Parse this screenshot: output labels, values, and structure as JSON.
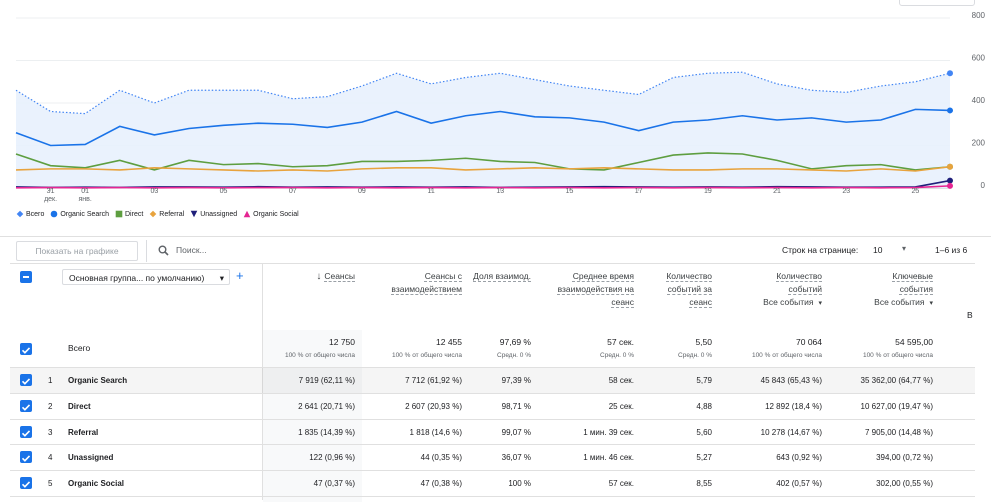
{
  "chart_data": {
    "type": "line",
    "categories": [
      null,
      "31 дек.",
      "01 янв.",
      null,
      "03",
      null,
      "05",
      null,
      "07",
      null,
      "09",
      null,
      "11",
      null,
      "13",
      null,
      "15",
      null,
      "17",
      null,
      "19",
      null,
      "21",
      null,
      "23",
      null,
      "25",
      null
    ],
    "series": [
      {
        "name": "Всего",
        "color": "#4285f4",
        "line_style": "dotted",
        "area": true,
        "marker": "diamond",
        "values": [
          460,
          360,
          350,
          460,
          400,
          460,
          460,
          460,
          420,
          430,
          480,
          540,
          490,
          520,
          540,
          510,
          480,
          460,
          440,
          520,
          540,
          545,
          490,
          460,
          450,
          480,
          500,
          540
        ]
      },
      {
        "name": "Organic Search",
        "color": "#1a73e8",
        "marker": "circle",
        "values": [
          260,
          200,
          205,
          290,
          250,
          280,
          295,
          305,
          300,
          285,
          310,
          360,
          305,
          340,
          360,
          335,
          330,
          310,
          270,
          310,
          320,
          340,
          320,
          330,
          310,
          320,
          370,
          365
        ]
      },
      {
        "name": "Direct",
        "color": "#5e9e40",
        "marker": "square",
        "values": [
          160,
          105,
          95,
          130,
          85,
          130,
          110,
          115,
          100,
          105,
          125,
          125,
          130,
          140,
          125,
          120,
          90,
          85,
          120,
          155,
          165,
          160,
          130,
          90,
          105,
          110,
          85,
          100
        ]
      },
      {
        "name": "Referral",
        "color": "#e8a33d",
        "marker": "diamond",
        "values": [
          85,
          90,
          90,
          85,
          95,
          90,
          85,
          80,
          85,
          80,
          90,
          95,
          95,
          85,
          90,
          95,
          90,
          95,
          90,
          85,
          85,
          90,
          90,
          85,
          80,
          90,
          80,
          100
        ]
      },
      {
        "name": "Unassigned",
        "color": "#1f1f7a",
        "marker": "triangle-down",
        "values": [
          5,
          3,
          4,
          3,
          5,
          5,
          4,
          6,
          4,
          5,
          4,
          5,
          4,
          5,
          3,
          4,
          5,
          6,
          5,
          4,
          5,
          4,
          6,
          5,
          4,
          4,
          5,
          35
        ]
      },
      {
        "name": "Organic Social",
        "color": "#e52592",
        "marker": "triangle-up",
        "values": [
          1,
          2,
          1,
          2,
          1,
          2,
          1,
          2,
          2,
          1,
          2,
          1,
          2,
          1,
          2,
          1,
          2,
          1,
          2,
          1,
          2,
          1,
          2,
          1,
          2,
          1,
          2,
          10
        ]
      }
    ],
    "ylim": [
      0,
      800
    ],
    "yticks": [
      0,
      200,
      400,
      600,
      800
    ],
    "grid": true
  },
  "controls": {
    "chart_filter_placeholder": "Показать на графике",
    "search_placeholder": "Поиск...",
    "rows_per_page_label": "Строк на странице:",
    "rows_per_page": "10",
    "pagination": "1–6 из 6"
  },
  "table": {
    "dimension_selector": "Основная группа... по умолчанию)",
    "truncated_header": "В",
    "columns": [
      {
        "title": "Сеансы",
        "sorted": true
      },
      {
        "title": "Сеансы с взаимодействием"
      },
      {
        "title": "Доля взаимод."
      },
      {
        "title": "Среднее время взаимодействия на сеанс"
      },
      {
        "title": "Количество событий за сеанс"
      },
      {
        "title": "Количество событий",
        "filter": "Все события"
      },
      {
        "title": "Ключевые события",
        "filter": "Все события"
      }
    ],
    "total": {
      "label": "Всего",
      "cells": [
        {
          "value": "12 750",
          "note": "100 % от общего числа"
        },
        {
          "value": "12 455",
          "note": "100 % от общего числа"
        },
        {
          "value": "97,69 %",
          "note": "Средн. 0 %"
        },
        {
          "value": "57 сек.",
          "note": "Средн. 0 %"
        },
        {
          "value": "5,50",
          "note": "Средн. 0 %"
        },
        {
          "value": "70 064",
          "note": "100 % от общего числа"
        },
        {
          "value": "54 595,00",
          "note": "100 % от общего числа"
        }
      ]
    },
    "rows": [
      {
        "index": "1",
        "name": "Organic Search",
        "cells": [
          "7 919 (62,11 %)",
          "7 712 (61,92 %)",
          "97,39 %",
          "58 сек.",
          "5,79",
          "45 843 (65,43 %)",
          "35 362,00 (64,77 %)"
        ]
      },
      {
        "index": "2",
        "name": "Direct",
        "cells": [
          "2 641 (20,71 %)",
          "2 607 (20,93 %)",
          "98,71 %",
          "25 сек.",
          "4,88",
          "12 892 (18,4 %)",
          "10 627,00 (19,47 %)"
        ]
      },
      {
        "index": "3",
        "name": "Referral",
        "cells": [
          "1 835 (14,39 %)",
          "1 818 (14,6 %)",
          "99,07 %",
          "1 мин. 39 сек.",
          "5,60",
          "10 278 (14,67 %)",
          "7 905,00 (14,48 %)"
        ]
      },
      {
        "index": "4",
        "name": "Unassigned",
        "cells": [
          "122 (0,96 %)",
          "44 (0,35 %)",
          "36,07 %",
          "1 мин. 46 сек.",
          "5,27",
          "643 (0,92 %)",
          "394,00 (0,72 %)"
        ]
      },
      {
        "index": "5",
        "name": "Organic Social",
        "cells": [
          "47 (0,37 %)",
          "47 (0,38 %)",
          "100 %",
          "57 сек.",
          "8,55",
          "402 (0,57 %)",
          "302,00 (0,55 %)"
        ]
      }
    ]
  }
}
